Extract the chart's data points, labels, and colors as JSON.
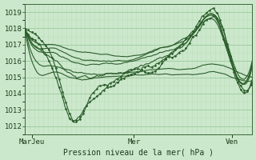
{
  "title": "Pression niveau de la mer( hPa )",
  "bg_color": "#cce8cc",
  "plot_bg_color": "#cce8cc",
  "grid_color_major": "#99cc99",
  "grid_color_minor": "#bbddbb",
  "line_color": "#2d5e2d",
  "ylim": [
    1011.5,
    1019.5
  ],
  "yticks": [
    1012,
    1013,
    1014,
    1015,
    1016,
    1017,
    1018,
    1019
  ],
  "xtick_labels": [
    "MarJeu",
    "Mer",
    "Ven"
  ],
  "xtick_pos": [
    0.03,
    0.48,
    0.91
  ],
  "figsize": [
    3.2,
    2.0
  ],
  "dpi": 100
}
